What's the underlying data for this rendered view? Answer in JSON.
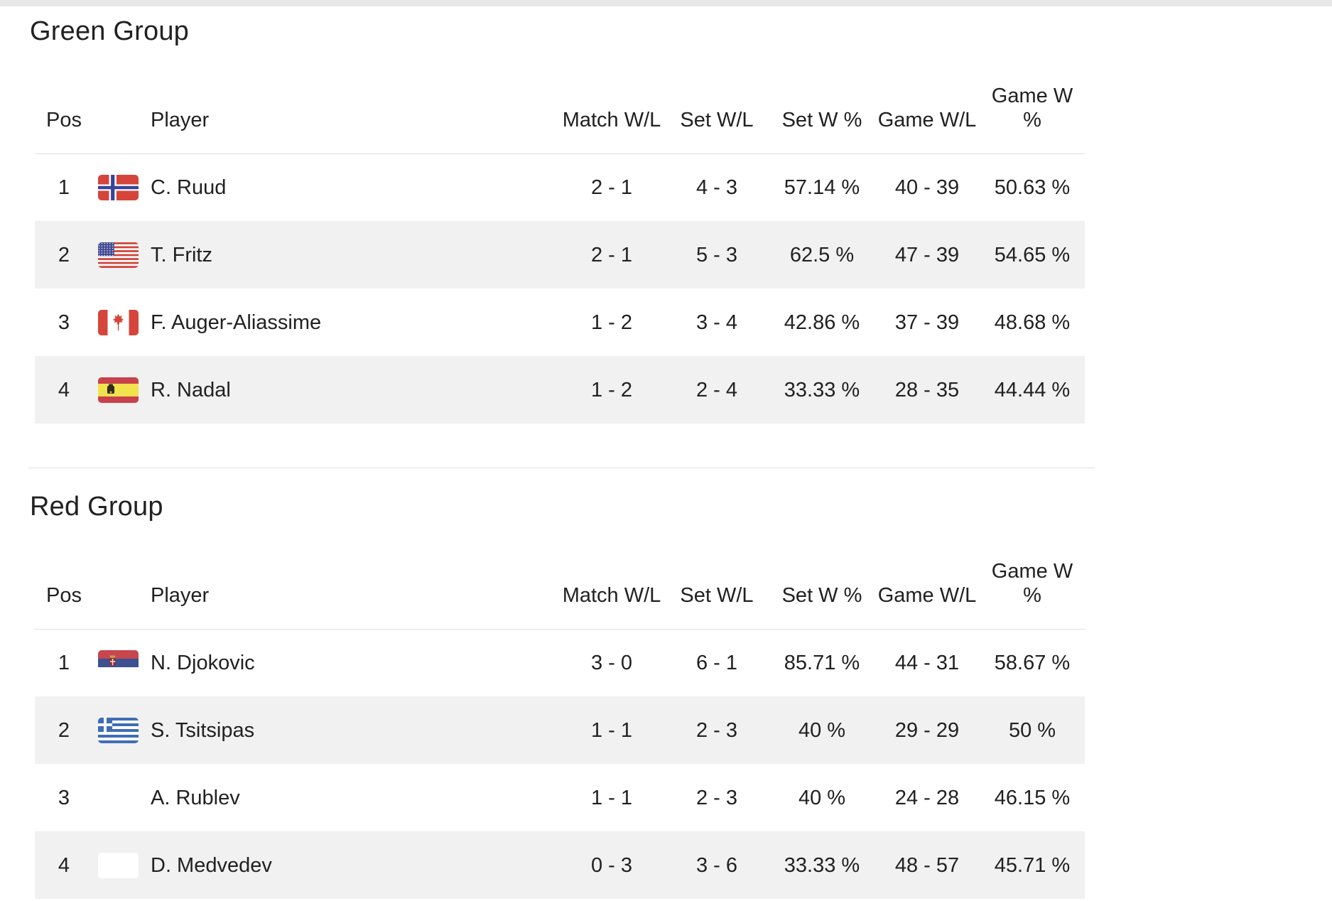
{
  "columns": [
    "Pos",
    "Player",
    "Match W/L",
    "Set W/L",
    "Set W %",
    "Game W/L",
    "Game W %"
  ],
  "groups": [
    {
      "title": "Green Group",
      "rows": [
        {
          "pos": "1",
          "flag": "norway",
          "player": "C. Ruud",
          "match_wl": "2 - 1",
          "set_wl": "4 - 3",
          "set_w_pct": "57.14 %",
          "game_wl": "40 - 39",
          "game_w_pct": "50.63 %"
        },
        {
          "pos": "2",
          "flag": "usa",
          "player": "T. Fritz",
          "match_wl": "2 - 1",
          "set_wl": "5 - 3",
          "set_w_pct": "62.5 %",
          "game_wl": "47 - 39",
          "game_w_pct": "54.65 %"
        },
        {
          "pos": "3",
          "flag": "canada",
          "player": "F. Auger-Aliassime",
          "match_wl": "1 - 2",
          "set_wl": "3 - 4",
          "set_w_pct": "42.86 %",
          "game_wl": "37 - 39",
          "game_w_pct": "48.68 %"
        },
        {
          "pos": "4",
          "flag": "spain",
          "player": "R. Nadal",
          "match_wl": "1 - 2",
          "set_wl": "2 - 4",
          "set_w_pct": "33.33 %",
          "game_wl": "28 - 35",
          "game_w_pct": "44.44 %"
        }
      ]
    },
    {
      "title": "Red Group",
      "rows": [
        {
          "pos": "1",
          "flag": "serbia",
          "player": "N. Djokovic",
          "match_wl": "3 - 0",
          "set_wl": "6 - 1",
          "set_w_pct": "85.71 %",
          "game_wl": "44 - 31",
          "game_w_pct": "58.67 %"
        },
        {
          "pos": "2",
          "flag": "greece",
          "player": "S. Tsitsipas",
          "match_wl": "1 - 1",
          "set_wl": "2 - 3",
          "set_w_pct": "40 %",
          "game_wl": "29 - 29",
          "game_w_pct": "50 %"
        },
        {
          "pos": "3",
          "flag": "blank",
          "player": "A. Rublev",
          "match_wl": "1 - 1",
          "set_wl": "2 - 3",
          "set_w_pct": "40 %",
          "game_wl": "24 - 28",
          "game_w_pct": "46.15 %"
        },
        {
          "pos": "4",
          "flag": "blank",
          "player": "D. Medvedev",
          "match_wl": "0 - 3",
          "set_wl": "3 - 6",
          "set_w_pct": "33.33 %",
          "game_wl": "48 - 57",
          "game_w_pct": "45.71 %"
        }
      ]
    }
  ],
  "colors": {
    "text": "#212121",
    "row_alt": "#f1f1f1",
    "divider": "#e0e0e0",
    "top_strip": "#e7e7e7"
  }
}
